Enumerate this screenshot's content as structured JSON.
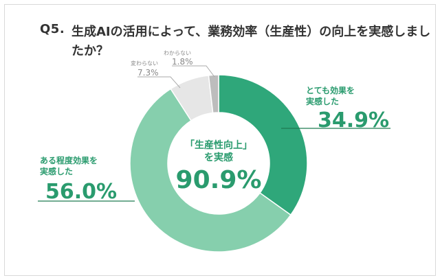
{
  "question": {
    "prefix": "Q5.",
    "line1": "生成AIの活用によって、業務効率（生産性）の向上を実感しまし",
    "line2": "たか？"
  },
  "chart_data": {
    "type": "pie",
    "donut": true,
    "title": "Q5. 生成AIの活用によって、業務効率（生産性）の向上を実感しましたか？",
    "slices": [
      {
        "label_lines": [
          "とても効果を",
          "実感した"
        ],
        "value": 34.9,
        "value_text": "34.9%",
        "color": "#2fa77a"
      },
      {
        "label_lines": [
          "ある程度効果を",
          "実感した"
        ],
        "value": 56.0,
        "value_text": "56.0%",
        "color": "#86cfad"
      },
      {
        "label_lines": [
          "変わらない"
        ],
        "value": 7.3,
        "value_text": "7.3%",
        "color": "#e6e6e6"
      },
      {
        "label_lines": [
          "わからない"
        ],
        "value": 1.8,
        "value_text": "1.8%",
        "color": "#bdbdbd"
      }
    ],
    "center": {
      "line1": "「生産性向上」",
      "line2": "を実感",
      "value": "90.9%"
    }
  },
  "colors": {
    "accent": "#2a9b6e",
    "leader": "#1f7a52",
    "leader_gray": "#aaaaaa"
  }
}
